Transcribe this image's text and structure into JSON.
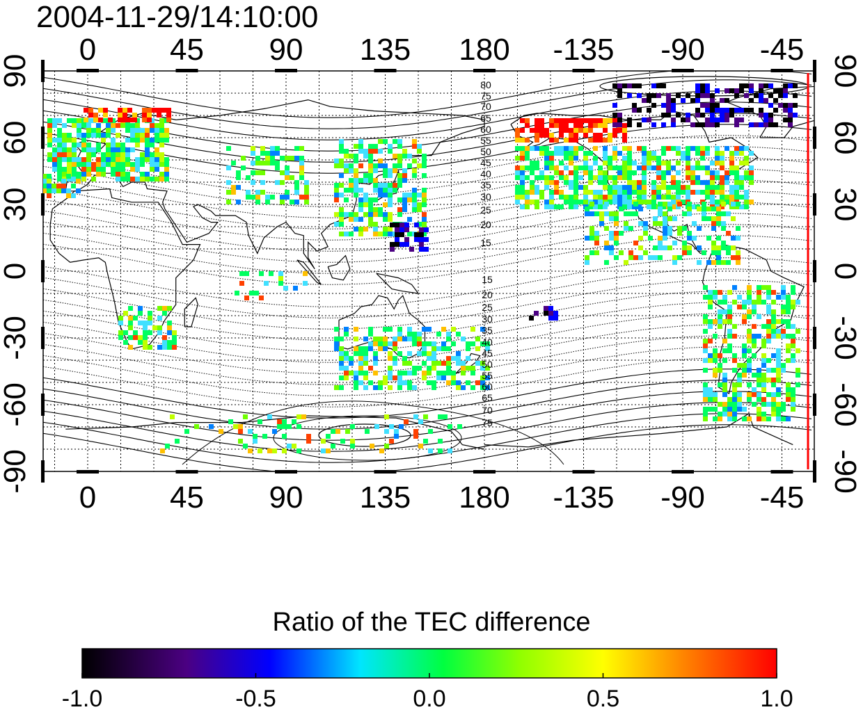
{
  "title": "2004-11-29/14:10:00",
  "map": {
    "x_tick_labels": [
      "0",
      "45",
      "90",
      "135",
      "180",
      "-135",
      "-90",
      "-45"
    ],
    "y_tick_labels": [
      "90",
      "60",
      "30",
      "0",
      "-30",
      "-60",
      "-90"
    ],
    "geomagnetic_lat_labels_north": [
      "80",
      "75",
      "70",
      "65",
      "60",
      "55",
      "50",
      "45",
      "40",
      "35",
      "30",
      "25",
      "20",
      "15"
    ],
    "geomagnetic_lat_labels_south": [
      "15",
      "20",
      "25",
      "30",
      "35",
      "40",
      "45",
      "50",
      "55",
      "60",
      "65",
      "70",
      "75"
    ],
    "marker_line_color": "#ff0000",
    "grid_style": "dotted"
  },
  "colorbar": {
    "title": "Ratio of the TEC difference",
    "tick_labels": [
      "-1.0",
      "-0.5",
      "0.0",
      "0.5",
      "1.0"
    ],
    "range": [
      -1.0,
      1.0
    ],
    "colors": [
      "#000000",
      "#4b0082",
      "#0000ff",
      "#00ffff",
      "#00ff00",
      "#ffff00",
      "#ff8000",
      "#ff0000"
    ]
  }
}
